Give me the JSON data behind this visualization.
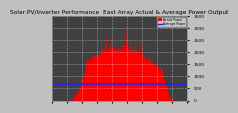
{
  "title": "Solar PV/Inverter Performance  East Array Actual & Average Power Output",
  "bg_color": "#c0c0c0",
  "plot_bg_color": "#404040",
  "area_color": "#ff0000",
  "avg_line_color": "#2222ff",
  "grid_color": "#ffffff",
  "ylim": [
    0,
    3500
  ],
  "avg_value": 680,
  "num_points": 288,
  "title_fontsize": 4.2,
  "tick_fontsize": 3.2,
  "legend_items": [
    "Actual Power",
    "Average Power"
  ],
  "legend_colors": [
    "#ff0000",
    "#2222ff"
  ],
  "yticks": [
    0,
    500,
    1000,
    1500,
    2000,
    2500,
    3000,
    3500
  ]
}
